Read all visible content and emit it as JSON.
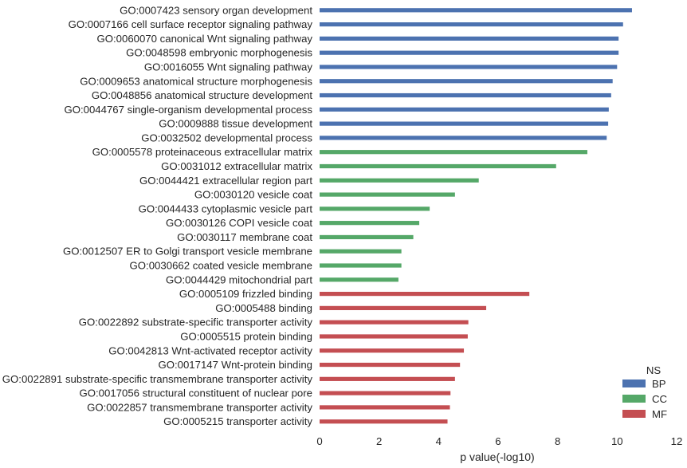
{
  "chart_data": {
    "type": "bar",
    "orientation": "horizontal",
    "xlabel": "p value(-log10)",
    "xlim": [
      0,
      12
    ],
    "xticks": [
      0,
      2,
      4,
      6,
      8,
      10,
      12
    ],
    "grid": false,
    "legend": {
      "title": "NS",
      "placement": "bottom-right",
      "entries": [
        {
          "name": "BP",
          "color": "#4c72b0"
        },
        {
          "name": "CC",
          "color": "#55a868"
        },
        {
          "name": "MF",
          "color": "#c44e52"
        }
      ]
    },
    "bars": [
      {
        "label": "GO:0007423 sensory organ development",
        "value": 10.5,
        "ns": "BP"
      },
      {
        "label": "GO:0007166 cell surface receptor signaling pathway",
        "value": 10.2,
        "ns": "BP"
      },
      {
        "label": "GO:0060070 canonical Wnt signaling pathway",
        "value": 10.05,
        "ns": "BP"
      },
      {
        "label": "GO:0048598 embryonic morphogenesis",
        "value": 10.05,
        "ns": "BP"
      },
      {
        "label": "GO:0016055 Wnt signaling pathway",
        "value": 10.0,
        "ns": "BP"
      },
      {
        "label": "GO:0009653 anatomical structure morphogenesis",
        "value": 9.85,
        "ns": "BP"
      },
      {
        "label": "GO:0048856 anatomical structure development",
        "value": 9.8,
        "ns": "BP"
      },
      {
        "label": "GO:0044767 single-organism developmental process",
        "value": 9.72,
        "ns": "BP"
      },
      {
        "label": "GO:0009888 tissue development",
        "value": 9.7,
        "ns": "BP"
      },
      {
        "label": "GO:0032502 developmental process",
        "value": 9.65,
        "ns": "BP"
      },
      {
        "label": "GO:0005578 proteinaceous extracellular matrix",
        "value": 9.0,
        "ns": "CC"
      },
      {
        "label": "GO:0031012 extracellular matrix",
        "value": 7.95,
        "ns": "CC"
      },
      {
        "label": "GO:0044421 extracellular region part",
        "value": 5.35,
        "ns": "CC"
      },
      {
        "label": "GO:0030120 vesicle coat",
        "value": 4.55,
        "ns": "CC"
      },
      {
        "label": "GO:0044433 cytoplasmic vesicle part",
        "value": 3.7,
        "ns": "CC"
      },
      {
        "label": "GO:0030126 COPI vesicle coat",
        "value": 3.35,
        "ns": "CC"
      },
      {
        "label": "GO:0030117 membrane coat",
        "value": 3.15,
        "ns": "CC"
      },
      {
        "label": "GO:0012507 ER to Golgi transport vesicle membrane",
        "value": 2.75,
        "ns": "CC"
      },
      {
        "label": "GO:0030662 coated vesicle membrane",
        "value": 2.75,
        "ns": "CC"
      },
      {
        "label": "GO:0044429 mitochondrial part",
        "value": 2.65,
        "ns": "CC"
      },
      {
        "label": "GO:0005109 frizzled binding",
        "value": 7.05,
        "ns": "MF"
      },
      {
        "label": "GO:0005488 binding",
        "value": 5.6,
        "ns": "MF"
      },
      {
        "label": "GO:0022892 substrate-specific transporter activity",
        "value": 5.0,
        "ns": "MF"
      },
      {
        "label": "GO:0005515 protein binding",
        "value": 4.98,
        "ns": "MF"
      },
      {
        "label": "GO:0042813 Wnt-activated receptor activity",
        "value": 4.85,
        "ns": "MF"
      },
      {
        "label": "GO:0017147 Wnt-protein binding",
        "value": 4.72,
        "ns": "MF"
      },
      {
        "label": "GO:0022891 substrate-specific transmembrane transporter activity",
        "value": 4.55,
        "ns": "MF"
      },
      {
        "label": "GO:0017056 structural constituent of nuclear pore",
        "value": 4.4,
        "ns": "MF"
      },
      {
        "label": "GO:0022857 transmembrane transporter activity",
        "value": 4.38,
        "ns": "MF"
      },
      {
        "label": "GO:0005215 transporter activity",
        "value": 4.3,
        "ns": "MF"
      }
    ]
  }
}
